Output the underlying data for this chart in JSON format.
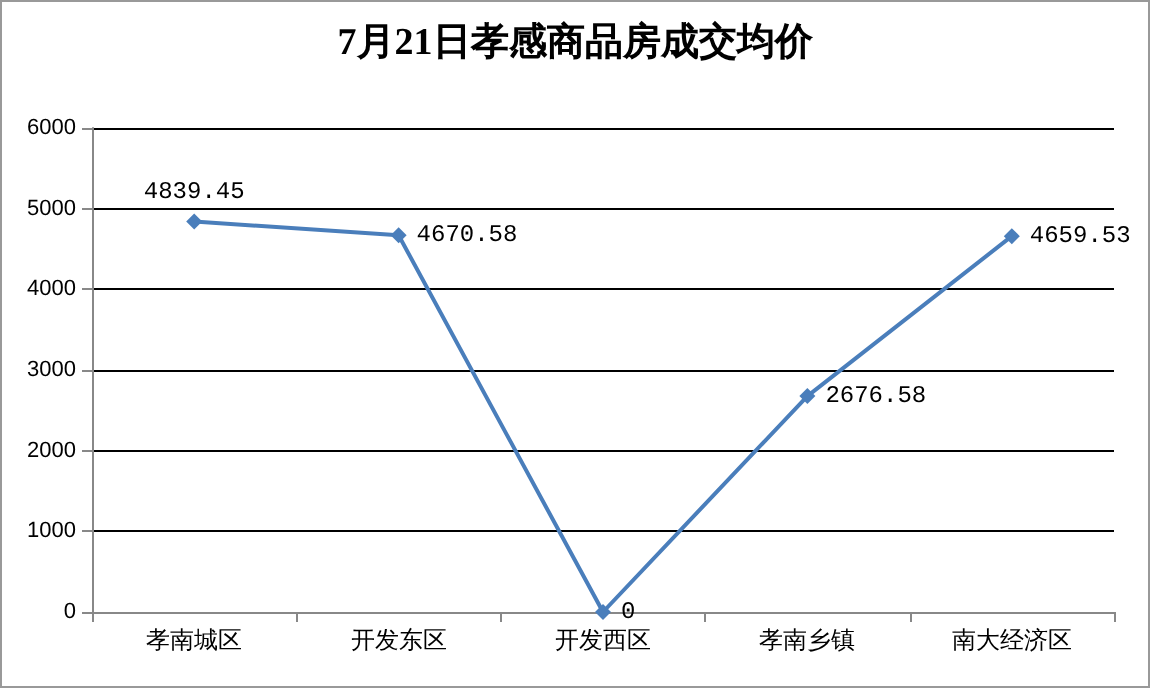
{
  "chart_data": {
    "type": "line",
    "title": "7月21日孝感商品房成交均价",
    "categories": [
      "孝南城区",
      "开发东区",
      "开发西区",
      "孝南乡镇",
      "南大经济区"
    ],
    "values": [
      4839.45,
      4670.58,
      0,
      2676.58,
      4659.53
    ],
    "color": "#4a7ebb",
    "marker": "diamond",
    "data_labels": true,
    "grid": "y",
    "ylim": [
      0,
      6000
    ],
    "yticks": [
      0,
      1000,
      2000,
      3000,
      4000,
      5000,
      6000
    ]
  }
}
